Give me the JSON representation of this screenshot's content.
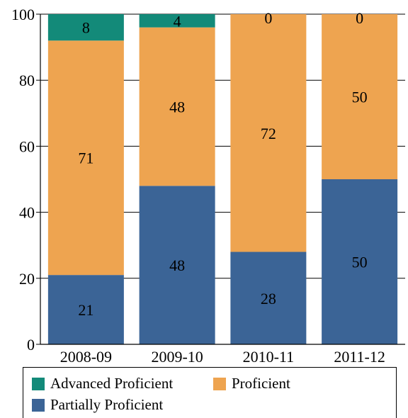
{
  "chart_data": {
    "type": "bar",
    "stacked": true,
    "categories": [
      "2008-09",
      "2009-10",
      "2010-11",
      "2011-12"
    ],
    "series": [
      {
        "name": "Partially Proficient",
        "color": "#3b6496",
        "values": [
          21,
          48,
          28,
          50
        ]
      },
      {
        "name": "Proficient",
        "color": "#eea450",
        "values": [
          71,
          48,
          72,
          50
        ]
      },
      {
        "name": "Advanced Proficient",
        "color": "#138a79",
        "values": [
          8,
          4,
          0,
          0
        ]
      }
    ],
    "ylim": [
      0,
      100
    ],
    "yticks": [
      0,
      20,
      40,
      60,
      80,
      100
    ],
    "title": "",
    "xlabel": "",
    "ylabel": "",
    "grid": "horizontal",
    "legend_position": "bottom"
  },
  "legend": {
    "advanced_label": "Advanced Proficient",
    "proficient_label": "Proficient",
    "partial_label": "Partially Proficient",
    "advanced_color": "#138a79",
    "proficient_color": "#eea450",
    "partial_color": "#3b6496"
  }
}
